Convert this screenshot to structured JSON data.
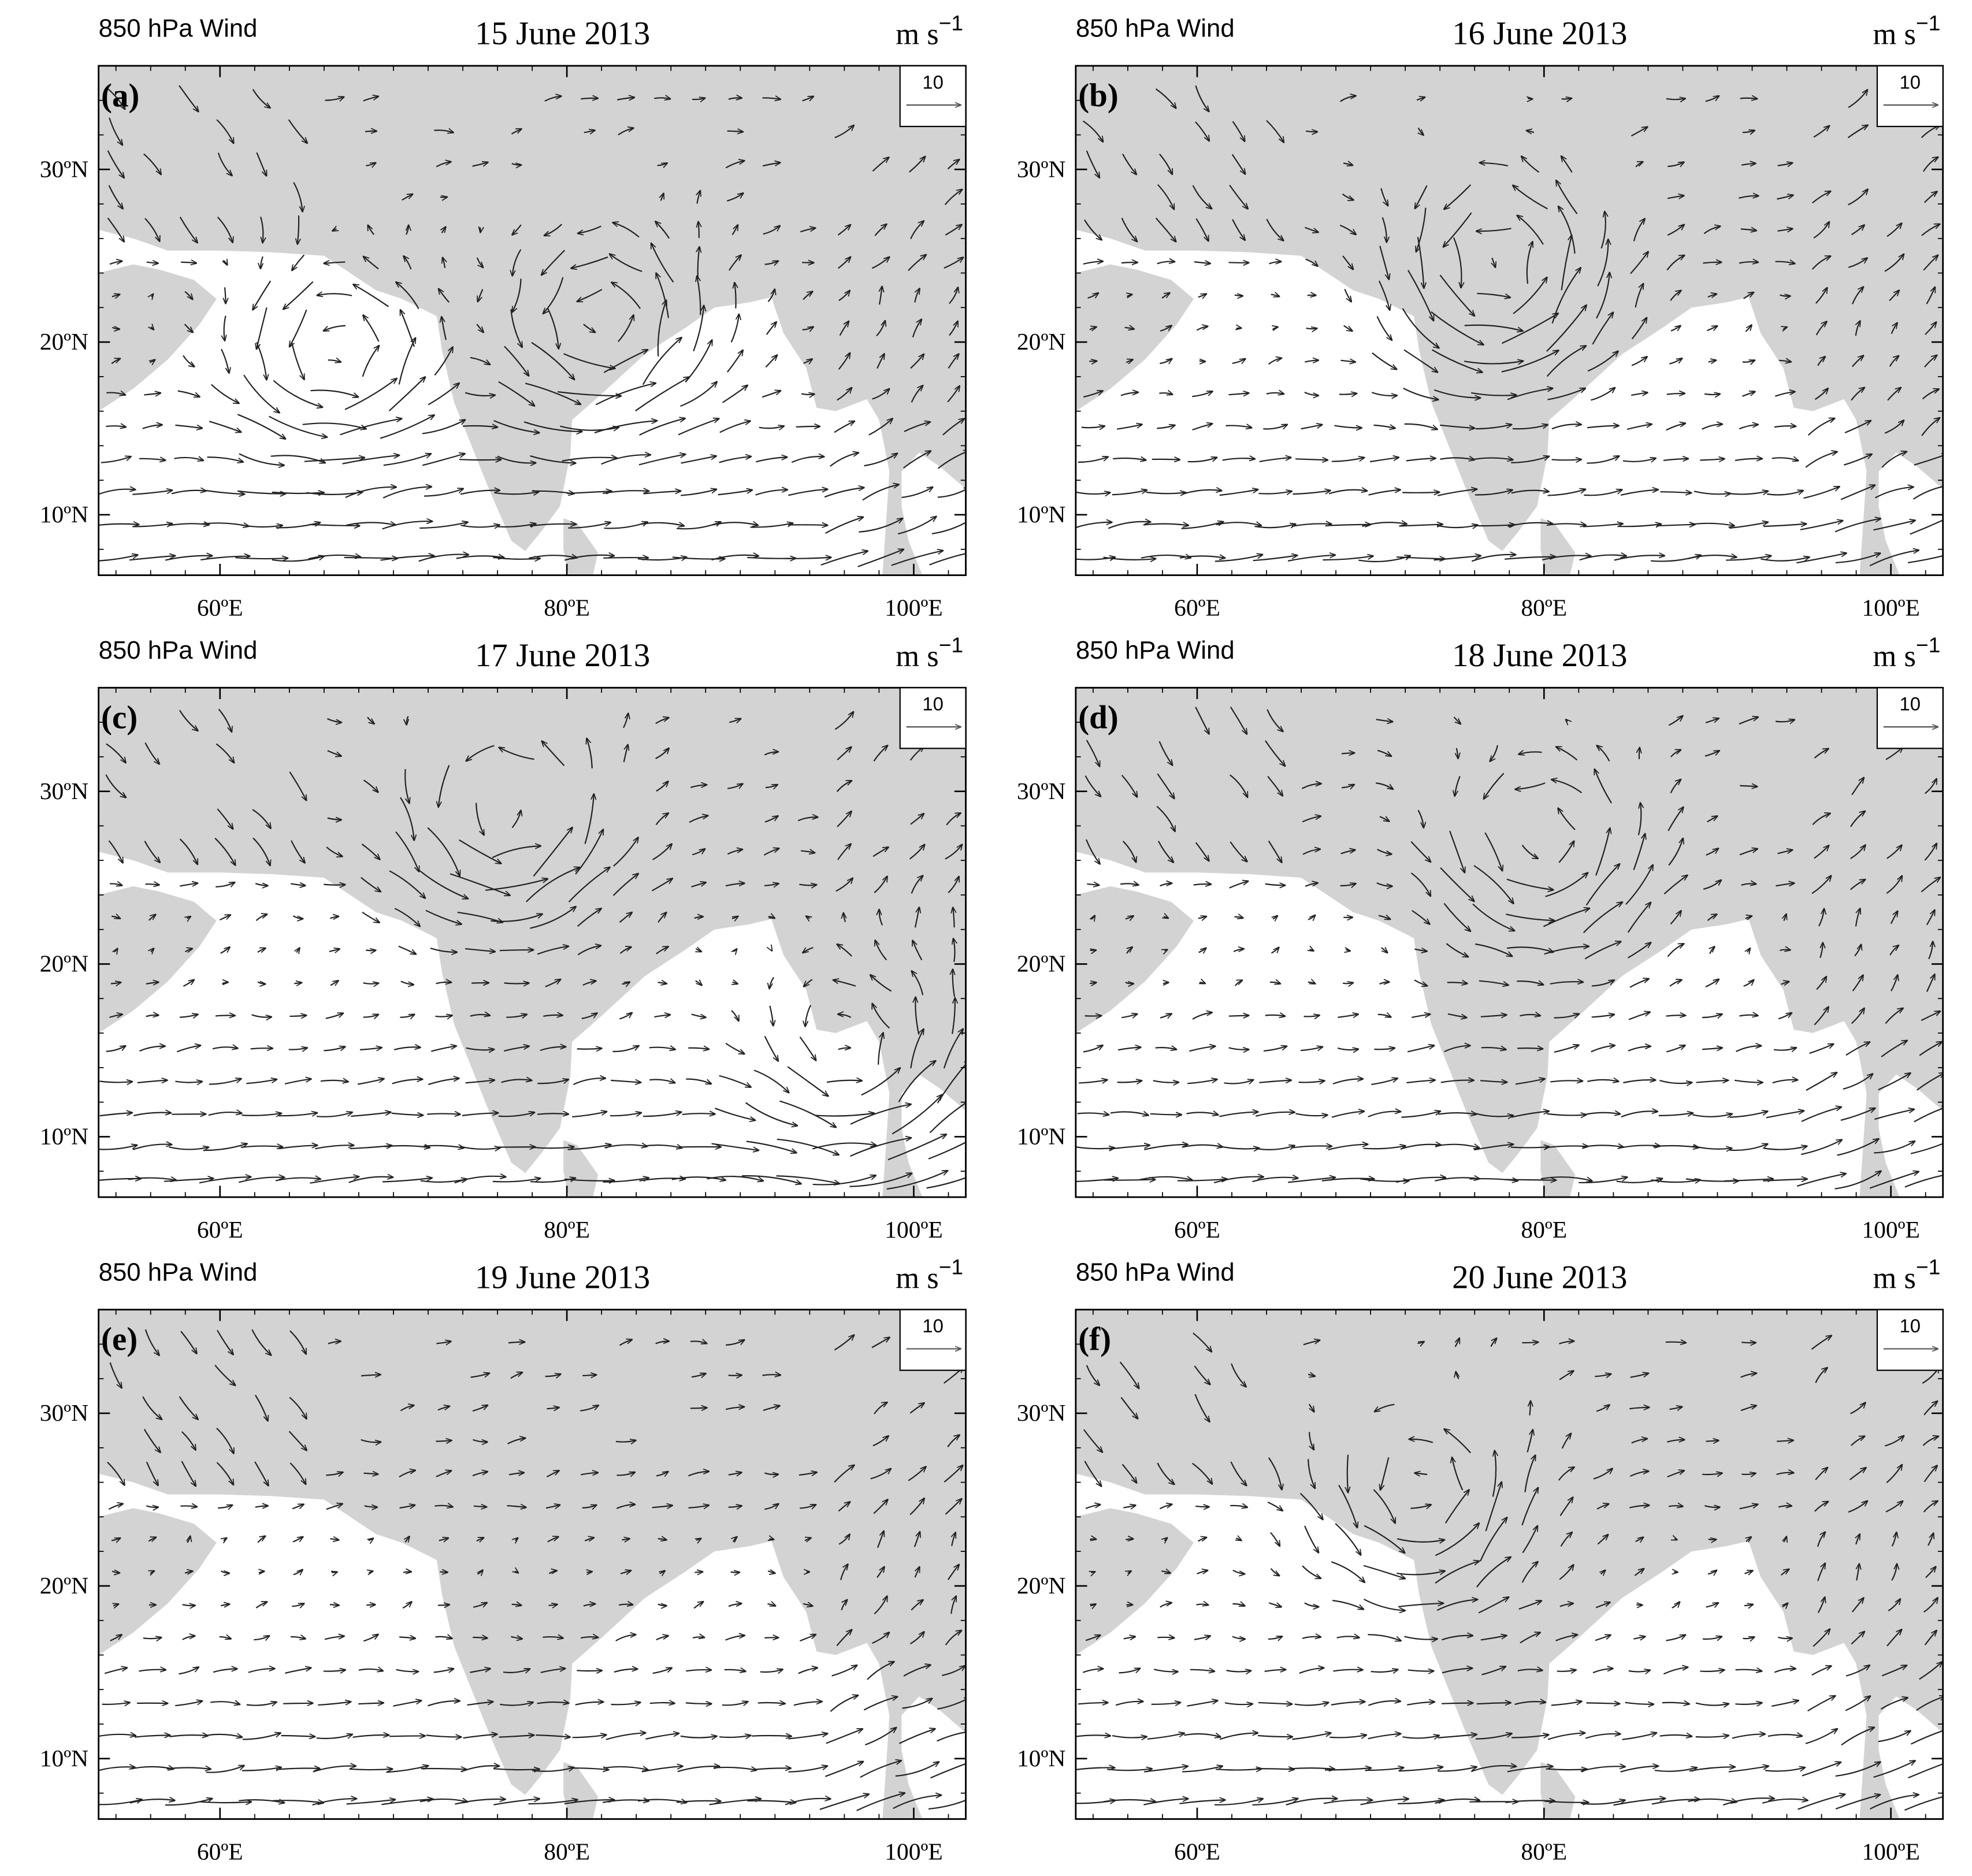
{
  "panels": [
    {
      "header": "850 hPa Wind",
      "title": "15 June 2013",
      "units": "m s",
      "units_superscript": "−1",
      "label": "(a)",
      "reference_vector": 10
    },
    {
      "header": "850 hPa Wind",
      "title": "16 June 2013",
      "units": "m s",
      "units_superscript": "−1",
      "label": "(b)",
      "reference_vector": 10
    },
    {
      "header": "850 hPa Wind",
      "title": "17 June 2013",
      "units": "m s",
      "units_superscript": "−1",
      "label": "(c)",
      "reference_vector": 10
    },
    {
      "header": "850 hPa Wind",
      "title": "18 June 2013",
      "units": "m s",
      "units_superscript": "−1",
      "label": "(d)",
      "reference_vector": 10
    },
    {
      "header": "850 hPa Wind",
      "title": "19 June 2013",
      "units": "m s",
      "units_superscript": "−1",
      "label": "(e)",
      "reference_vector": 10
    },
    {
      "header": "850 hPa Wind",
      "title": "20 June 2013",
      "units": "m s",
      "units_superscript": "−1",
      "label": "(f)",
      "reference_vector": 10
    }
  ],
  "map": {
    "xlim": [
      53,
      103
    ],
    "ylim": [
      6.5,
      36
    ],
    "xticks": [
      {
        "value": 60,
        "label": "60ºE"
      },
      {
        "value": 80,
        "label": "80ºE"
      },
      {
        "value": 100,
        "label": "100ºE"
      }
    ],
    "yticks": [
      {
        "value": 10,
        "label": "10ºN"
      },
      {
        "value": 20,
        "label": "20ºN"
      },
      {
        "value": 30,
        "label": "30ºN"
      }
    ]
  }
}
